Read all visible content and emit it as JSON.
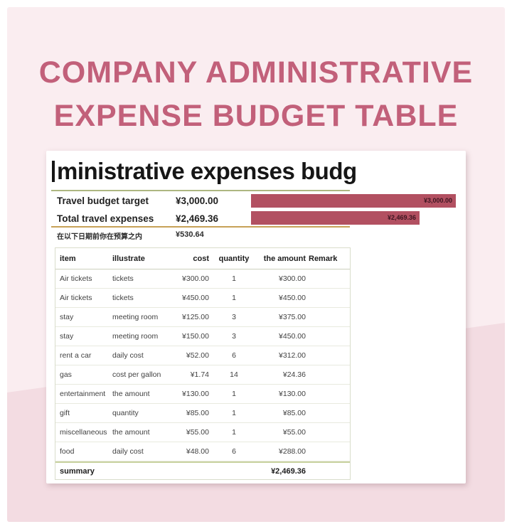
{
  "colors": {
    "pink_light": "#faedf0",
    "pink_dark": "#f3dce2",
    "rose": "#c2607a",
    "bar": "#b25061",
    "bar_label": "#3c1520",
    "sage": "#adb781",
    "gold": "#c7a157",
    "table_border": "#d9ddcb",
    "summary_line": "#c9d2a0"
  },
  "poster": {
    "title_line1": "COMPANY ADMINISTRATIVE",
    "title_line2": "EXPENSE BUDGET TABLE"
  },
  "sheet": {
    "title_clipped": "ministrative expenses budg",
    "kpis": [
      {
        "label": "Travel budget target",
        "value": "¥3,000.00"
      },
      {
        "label": "Total travel expenses",
        "value": "¥2,469.36"
      },
      {
        "label": "在以下日期前你在预算之内",
        "value": "¥530.64"
      }
    ],
    "table": {
      "headers": [
        "item",
        "illustrate",
        "cost",
        "quantity",
        "the amount",
        "Remark"
      ],
      "rows": [
        {
          "item": "Air tickets",
          "illustrate": "tickets",
          "cost": "¥300.00",
          "quantity": "1",
          "amount": "¥300.00",
          "remark": ""
        },
        {
          "item": "Air tickets",
          "illustrate": "tickets",
          "cost": "¥450.00",
          "quantity": "1",
          "amount": "¥450.00",
          "remark": ""
        },
        {
          "item": "stay",
          "illustrate": "meeting room",
          "cost": "¥125.00",
          "quantity": "3",
          "amount": "¥375.00",
          "remark": ""
        },
        {
          "item": "stay",
          "illustrate": "meeting room",
          "cost": "¥150.00",
          "quantity": "3",
          "amount": "¥450.00",
          "remark": ""
        },
        {
          "item": "rent a car",
          "illustrate": "daily cost",
          "cost": "¥52.00",
          "quantity": "6",
          "amount": "¥312.00",
          "remark": ""
        },
        {
          "item": "gas",
          "illustrate": "cost per gallon",
          "cost": "¥1.74",
          "quantity": "14",
          "amount": "¥24.36",
          "remark": ""
        },
        {
          "item": "entertainment",
          "illustrate": "the amount",
          "cost": "¥130.00",
          "quantity": "1",
          "amount": "¥130.00",
          "remark": ""
        },
        {
          "item": "gift",
          "illustrate": "quantity",
          "cost": "¥85.00",
          "quantity": "1",
          "amount": "¥85.00",
          "remark": ""
        },
        {
          "item": "miscellaneous",
          "illustrate": "the amount",
          "cost": "¥55.00",
          "quantity": "1",
          "amount": "¥55.00",
          "remark": ""
        },
        {
          "item": "food",
          "illustrate": "daily cost",
          "cost": "¥48.00",
          "quantity": "6",
          "amount": "¥288.00",
          "remark": ""
        }
      ],
      "summary": {
        "label": "summary",
        "amount": "¥2,469.36"
      }
    }
  },
  "chart_data": {
    "type": "bar",
    "orientation": "horizontal",
    "title": "",
    "categories": [
      "Travel budget target",
      "Total travel expenses"
    ],
    "values": [
      3000,
      2469.36
    ],
    "value_labels": [
      "¥3,000.00",
      "¥2,469.36"
    ],
    "xlim": [
      0,
      3000
    ],
    "grid": false,
    "legend_position": "none",
    "bar_color": "#b25061",
    "label_color": "#3c1520"
  }
}
